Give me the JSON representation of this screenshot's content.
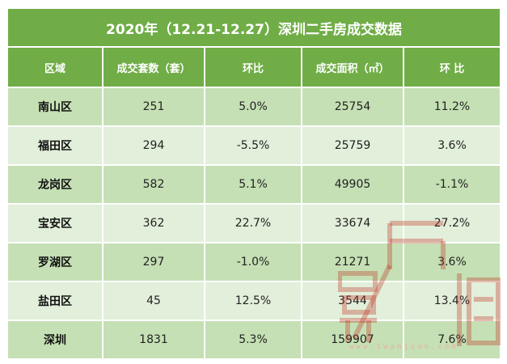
{
  "title": "2020年（12.21-12.27）深圳二手房成交数据",
  "headers": [
    "区域",
    "成交套数（套）",
    "环比",
    "成交面积（㎡）",
    "环 比"
  ],
  "rows": [
    {
      "region": "南山区",
      "units": "251",
      "units_mom": "5.0%",
      "area": "25754",
      "area_mom": "11.2%"
    },
    {
      "region": "福田区",
      "units": "294",
      "units_mom": "-5.5%",
      "area": "25759",
      "area_mom": "3.6%"
    },
    {
      "region": "龙岗区",
      "units": "582",
      "units_mom": "5.1%",
      "area": "49905",
      "area_mom": "-1.1%"
    },
    {
      "region": "宝安区",
      "units": "362",
      "units_mom": "22.7%",
      "area": "33674",
      "area_mom": "27.2%"
    },
    {
      "region": "罗湖区",
      "units": "297",
      "units_mom": "-1.0%",
      "area": "21271",
      "area_mom": "3.6%"
    },
    {
      "region": "盐田区",
      "units": "45",
      "units_mom": "12.5%",
      "area": "3544",
      "area_mom": "13.4%"
    },
    {
      "region": "深圳",
      "units": "1831",
      "units_mom": "5.3%",
      "area": "159907",
      "area_mom": "7.6%"
    }
  ],
  "watermark_url": "www.1wanjian.com",
  "colors": {
    "header_green": "#70ad47",
    "row_dark": "#c5e0b4",
    "row_light": "#e2efda",
    "watermark": "#c0392b"
  }
}
